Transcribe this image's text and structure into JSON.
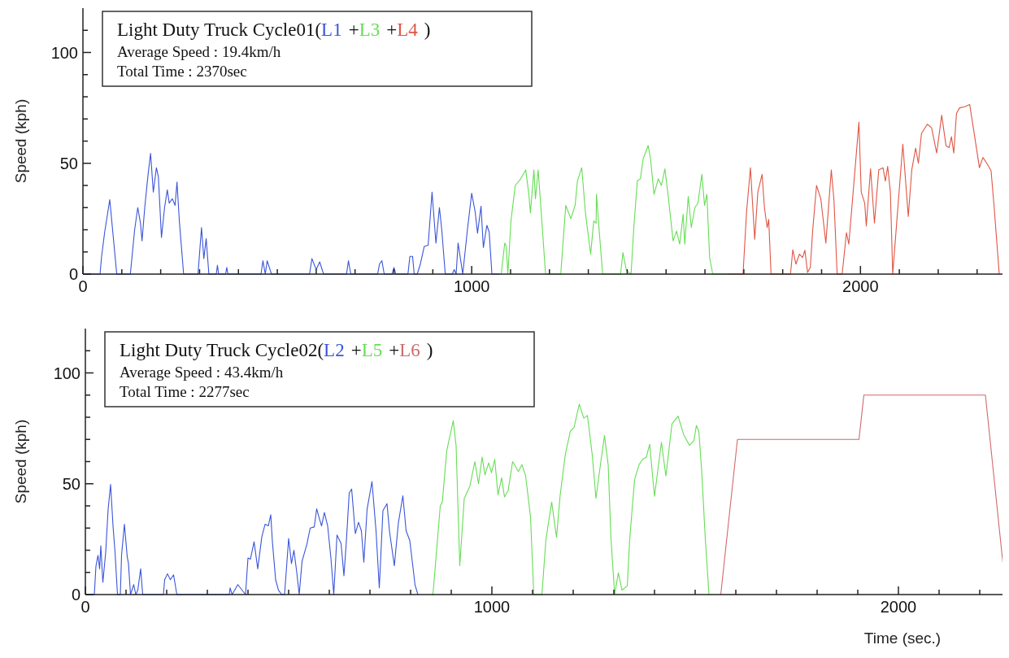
{
  "chart_data": [
    {
      "type": "line",
      "title": "Light Duty Truck Cycle01(",
      "ylabel": "Speed (kph)",
      "annotations": [
        "+",
        "+",
        ")",
        "Average Speed : 19.4km/h",
        "Total Time : 2370sec"
      ],
      "legend": "top left",
      "xlim": [
        0,
        2380
      ],
      "ylim": [
        0,
        120
      ],
      "xticks": [
        0,
        {
          "value": 100,
          "label": null
        },
        {
          "value": 200,
          "label": null
        },
        {
          "value": 300,
          "label": null
        },
        {
          "value": 400,
          "label": null
        },
        {
          "value": 500,
          "label": null
        },
        {
          "value": 600,
          "label": null
        },
        {
          "value": 700,
          "label": null
        },
        {
          "value": 800,
          "label": null
        },
        {
          "value": 900,
          "label": null
        },
        1000,
        {
          "value": 1100,
          "label": null
        },
        {
          "value": 1200,
          "label": null
        },
        {
          "value": 1300,
          "label": null
        },
        {
          "value": 1400,
          "label": null
        },
        {
          "value": 1500,
          "label": null
        },
        {
          "value": 1600,
          "label": null
        },
        {
          "value": 1700,
          "label": null
        },
        {
          "value": 1800,
          "label": null
        },
        {
          "value": 1900,
          "label": null
        },
        2000,
        {
          "value": 2100,
          "label": null
        },
        {
          "value": 2200,
          "label": null
        },
        {
          "value": 2300,
          "label": null
        }
      ],
      "yticks": [
        0,
        {
          "value": 10,
          "label": null
        },
        {
          "value": 20,
          "label": null
        },
        {
          "value": 30,
          "label": null
        },
        {
          "value": 40,
          "label": null
        },
        50,
        {
          "value": 60,
          "label": null
        },
        {
          "value": 70,
          "label": null
        },
        {
          "value": 80,
          "label": null
        },
        {
          "value": 90,
          "label": null
        },
        100,
        {
          "value": 110,
          "label": null
        }
      ],
      "series": [
        {
          "name": "L1",
          "color": "#3a55d8",
          "x": [
            0,
            44,
            48,
            56,
            69,
            87,
            122,
            133,
            141,
            148,
            152,
            159,
            167,
            174,
            181,
            189,
            194,
            202,
            210,
            217,
            222,
            230,
            237,
            242,
            248,
            259,
            296,
            305,
            311,
            317,
            324,
            343,
            346,
            349,
            367,
            370,
            373,
            458,
            463,
            469,
            474,
            485,
            583,
            589,
            600,
            609,
            619,
            678,
            683,
            689,
            758,
            763,
            769,
            775,
            795,
            800,
            805,
            836,
            841,
            848,
            852,
            860,
            868,
            878,
            888,
            898,
            908,
            917,
            923,
            932,
            950,
            955,
            960,
            965,
            977,
            989,
            1000,
            1009,
            1015,
            1024,
            1030,
            1039,
            1045,
            1052,
            1072
          ],
          "values": [
            0,
            0,
            8,
            19,
            33.6,
            0,
            0,
            20,
            30,
            23,
            15,
            30,
            44,
            54.5,
            37,
            48,
            44,
            16.5,
            30,
            38,
            32,
            34,
            31,
            41.5,
            24,
            0,
            0,
            21,
            7,
            16,
            0,
            0,
            4,
            0,
            0,
            3,
            0,
            0,
            6,
            0,
            6,
            0,
            0,
            7,
            2,
            5.5,
            0,
            0,
            6,
            0,
            0,
            4.6,
            6,
            0,
            0,
            3,
            0,
            0,
            8,
            8,
            0,
            0,
            4.6,
            12.5,
            13,
            37,
            14,
            30,
            20,
            0,
            0,
            2,
            0,
            14,
            0,
            20,
            36.5,
            28,
            18.5,
            30.6,
            12,
            22,
            19,
            0,
            0
          ]
        },
        {
          "name": "L3",
          "color": "#66dd55",
          "x": [
            1076,
            1085,
            1089,
            1093,
            1101,
            1112,
            1126,
            1139,
            1147,
            1151,
            1160,
            1164,
            1171,
            1180,
            1190,
            1229,
            1242,
            1255,
            1266,
            1272,
            1283,
            1293,
            1306,
            1314,
            1320,
            1321,
            1328,
            1337,
            1383,
            1389,
            1398,
            1405,
            1410,
            1417,
            1426,
            1434,
            1441,
            1454,
            1460,
            1469,
            1480,
            1488,
            1497,
            1505,
            1518,
            1527,
            1535,
            1544,
            1548,
            1557,
            1565,
            1574,
            1582,
            1592,
            1599,
            1605,
            1612,
            1620,
            1659
          ],
          "values": [
            0,
            14,
            12.5,
            0,
            24,
            40,
            43,
            47,
            36,
            27.6,
            47,
            34,
            47,
            25,
            0,
            0,
            31,
            25,
            31,
            42,
            48,
            27,
            9,
            24,
            23,
            36,
            19.4,
            0,
            0,
            9.7,
            1.5,
            0.7,
            0,
            21,
            42,
            43,
            52,
            58,
            52,
            36,
            43,
            40,
            47.5,
            36,
            15,
            19.4,
            13.5,
            27,
            13.5,
            35,
            21,
            30,
            32,
            45,
            31,
            36,
            7.5,
            0,
            0
          ]
        },
        {
          "name": "L4",
          "color": "#e05545",
          "x": [
            1660,
            1698,
            1707,
            1717,
            1728,
            1736,
            1747,
            1753,
            1760,
            1764,
            1770,
            1820,
            1826,
            1834,
            1843,
            1851,
            1857,
            1864,
            1871,
            1877,
            1887,
            1898,
            1911,
            1925,
            1932,
            1940,
            1953,
            1964,
            1970,
            1985,
            1996,
            2002,
            2011,
            2015,
            2026,
            2036,
            2047,
            2058,
            2064,
            2070,
            2077,
            2083,
            2094,
            2109,
            2123,
            2132,
            2142,
            2149,
            2157,
            2172,
            2183,
            2196,
            2209,
            2220,
            2228,
            2234,
            2240,
            2247,
            2255,
            2268,
            2281,
            2293,
            2306,
            2315,
            2325,
            2336,
            2344,
            2357
          ],
          "values": [
            0,
            0,
            28,
            48,
            15.7,
            37,
            45,
            30,
            21,
            24.7,
            0,
            0,
            11,
            4.5,
            9,
            7.5,
            10.8,
            0.7,
            3,
            19.4,
            40,
            34,
            14,
            47,
            33,
            0,
            0,
            18.7,
            13.5,
            45,
            68.5,
            37,
            32,
            21.7,
            47.5,
            23,
            47,
            48,
            42,
            48.6,
            37,
            0,
            25,
            58.6,
            26,
            47,
            56.8,
            50,
            63.5,
            67.6,
            66,
            54.6,
            71.7,
            58,
            57,
            62,
            54.6,
            72.5,
            75,
            75.5,
            76.5,
            63,
            48,
            52.6,
            50,
            46.6,
            30,
            0
          ]
        }
      ]
    },
    {
      "type": "line",
      "title": "Light Duty Truck Cycle02(",
      "ylabel": "Speed (kph)",
      "xlabel": "Time (sec.)",
      "annotations": [
        "+",
        "+",
        ")",
        "Average Speed : 43.4km/h",
        "Total Time : 2277sec"
      ],
      "legend": "top left",
      "xlim": [
        0,
        2270
      ],
      "ylim": [
        0,
        120
      ],
      "xticks": [
        0,
        {
          "value": 100,
          "label": null
        },
        {
          "value": 200,
          "label": null
        },
        {
          "value": 300,
          "label": null
        },
        {
          "value": 400,
          "label": null
        },
        {
          "value": 500,
          "label": null
        },
        {
          "value": 600,
          "label": null
        },
        {
          "value": 700,
          "label": null
        },
        {
          "value": 800,
          "label": null
        },
        {
          "value": 900,
          "label": null
        },
        1000,
        {
          "value": 1100,
          "label": null
        },
        {
          "value": 1200,
          "label": null
        },
        {
          "value": 1300,
          "label": null
        },
        {
          "value": 1400,
          "label": null
        },
        {
          "value": 1500,
          "label": null
        },
        {
          "value": 1600,
          "label": null
        },
        {
          "value": 1700,
          "label": null
        },
        {
          "value": 1800,
          "label": null
        },
        {
          "value": 1900,
          "label": null
        },
        2000,
        {
          "value": 2100,
          "label": null
        },
        {
          "value": 2200,
          "label": null
        }
      ],
      "yticks": [
        0,
        {
          "value": 10,
          "label": null
        },
        {
          "value": 20,
          "label": null
        },
        {
          "value": 30,
          "label": null
        },
        {
          "value": 40,
          "label": null
        },
        50,
        {
          "value": 60,
          "label": null
        },
        {
          "value": 70,
          "label": null
        },
        {
          "value": 80,
          "label": null
        },
        {
          "value": 90,
          "label": null
        },
        100,
        {
          "value": 110,
          "label": null
        }
      ],
      "series": [
        {
          "name": "L2",
          "color": "#3a55d8",
          "x": [
            0,
            22,
            26,
            31,
            35,
            38,
            43,
            50,
            56,
            62,
            68,
            73,
            79,
            86,
            89,
            96,
            103,
            106,
            111,
            119,
            124,
            129,
            136,
            141,
            192,
            195,
            202,
            209,
            217,
            225,
            354,
            356,
            361,
            375,
            394,
            400,
            406,
            415,
            424,
            434,
            442,
            450,
            456,
            460,
            468,
            475,
            483,
            490,
            500,
            507,
            513,
            520,
            526,
            533,
            545,
            553,
            563,
            569,
            576,
            581,
            588,
            596,
            604,
            611,
            619,
            629,
            636,
            642,
            649,
            655,
            664,
            672,
            679,
            685,
            693,
            705,
            715,
            723,
            732,
            742,
            748,
            760,
            770,
            781,
            789,
            798,
            811,
            818
          ],
          "values": [
            0,
            0,
            12.8,
            17.7,
            11.6,
            22,
            5.5,
            19,
            38.5,
            49.7,
            31,
            19,
            0,
            0,
            17.7,
            31.7,
            17,
            14,
            0,
            4.5,
            0,
            2,
            11.6,
            0,
            0,
            6.7,
            9.4,
            6.7,
            8.9,
            0,
            0,
            3,
            0,
            4.5,
            0,
            16.5,
            16,
            23.8,
            11.6,
            26,
            31.7,
            31,
            36,
            24,
            6.7,
            2,
            0,
            0,
            25.3,
            14,
            20,
            10,
            0,
            15,
            22.8,
            30,
            30.5,
            38.7,
            34,
            31,
            37,
            31,
            16.5,
            0,
            26.9,
            23,
            8.5,
            24,
            45.8,
            47.6,
            27.5,
            32.6,
            28.7,
            14.6,
            38.5,
            51,
            28.7,
            3,
            37.9,
            41,
            28.7,
            13,
            32.4,
            44.6,
            28.7,
            24.4,
            4.3,
            0
          ]
        },
        {
          "name": "L5",
          "color": "#66dd55",
          "x": [
            851,
            855,
            873,
            878,
            889,
            905,
            912,
            921,
            932,
            946,
            958,
            967,
            976,
            983,
            992,
            999,
            1007,
            1015,
            1024,
            1031,
            1040,
            1051,
            1065,
            1074,
            1083,
            1095,
            1103,
            1123,
            1133,
            1147,
            1159,
            1168,
            1181,
            1193,
            1202,
            1215,
            1226,
            1235,
            1247,
            1256,
            1268,
            1277,
            1286,
            1293,
            1302,
            1311,
            1320,
            1333,
            1339,
            1351,
            1362,
            1371,
            1380,
            1388,
            1400,
            1417,
            1428,
            1443,
            1458,
            1472,
            1486,
            1497,
            1503,
            1509,
            1516,
            1525,
            1534
          ],
          "values": [
            0,
            0,
            40,
            41.7,
            65,
            78.5,
            67,
            13,
            43.4,
            49,
            60,
            50,
            62,
            54,
            59.4,
            55,
            61,
            45,
            52.7,
            44,
            47,
            60,
            55.5,
            58.6,
            53.5,
            35,
            0,
            0,
            25,
            41.7,
            25.8,
            45,
            63.6,
            73.7,
            75.4,
            85.9,
            79.6,
            80.8,
            62.8,
            43.4,
            60,
            71.7,
            58.6,
            25,
            0,
            9.8,
            2,
            3.9,
            25,
            51.9,
            58.6,
            61,
            62,
            67.8,
            44.3,
            68.7,
            53.5,
            77,
            80.5,
            72,
            67.3,
            69.5,
            76.3,
            73.7,
            56,
            25,
            0
          ]
        },
        {
          "name": "L6",
          "color": "#d06a6a",
          "x": [
            1563,
            1604,
            1903,
            1915,
            2214,
            2265
          ],
          "values": [
            0,
            70,
            70,
            90,
            90,
            0
          ]
        }
      ]
    }
  ]
}
